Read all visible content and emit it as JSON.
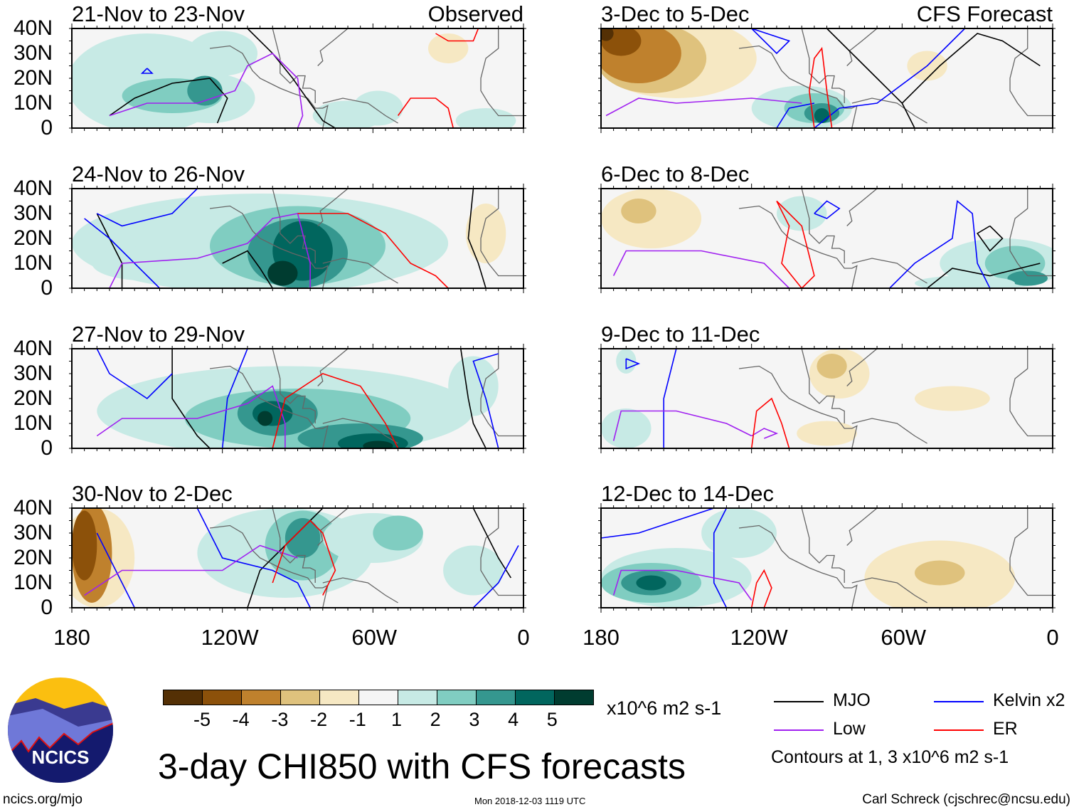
{
  "chart_data": {
    "type": "heatmap",
    "title": "3-day CHI850 with CFS forecasts",
    "variable": "CHI850 anomaly",
    "units": "x10^6 m2 s-1",
    "lat_ticks": [
      "40N",
      "30N",
      "20N",
      "10N",
      "0"
    ],
    "lon_ticks": [
      "180",
      "120W",
      "60W",
      "0"
    ],
    "columns": [
      {
        "label": "Observed"
      },
      {
        "label": "CFS Forecast"
      }
    ],
    "panels": [
      {
        "title": "21-Nov to 23-Nov",
        "source": "Observed"
      },
      {
        "title": "24-Nov to 26-Nov",
        "source": "Observed"
      },
      {
        "title": "27-Nov to 29-Nov",
        "source": "Observed"
      },
      {
        "title": "30-Nov to 2-Dec",
        "source": "Observed"
      },
      {
        "title": "3-Dec to 5-Dec",
        "source": "CFS Forecast"
      },
      {
        "title": "6-Dec to 8-Dec",
        "source": "CFS Forecast"
      },
      {
        "title": "9-Dec to 11-Dec",
        "source": "CFS Forecast"
      },
      {
        "title": "12-Dec to 14-Dec",
        "source": "CFS Forecast"
      }
    ],
    "colorbar": {
      "labels": [
        "-5",
        "-4",
        "-3",
        "-2",
        "-1",
        "1",
        "2",
        "3",
        "4",
        "5"
      ],
      "colors": [
        "#543005",
        "#8c510a",
        "#bf812d",
        "#dfc27d",
        "#f6e8c3",
        "#f5f5f5",
        "#c7eae5",
        "#80cdc1",
        "#35978f",
        "#01665e",
        "#003c30"
      ],
      "units": "x10^6 m2 s-1"
    },
    "legend": [
      {
        "label": "MJO",
        "color": "#000000"
      },
      {
        "label": "Kelvin x2",
        "color": "#0000ff"
      },
      {
        "label": "Low",
        "color": "#a020f0"
      },
      {
        "label": "ER",
        "color": "#ff0000"
      }
    ],
    "contour_note": "Contours at 1, 3 x10^6 m2 s-1"
  },
  "footer": {
    "logo_text": "NCICS",
    "url": "ncics.org/mjo",
    "timestamp": "Mon 2018-12-03 1119 UTC",
    "author": "Carl Schreck (cjschrec@ncsu.edu)"
  }
}
